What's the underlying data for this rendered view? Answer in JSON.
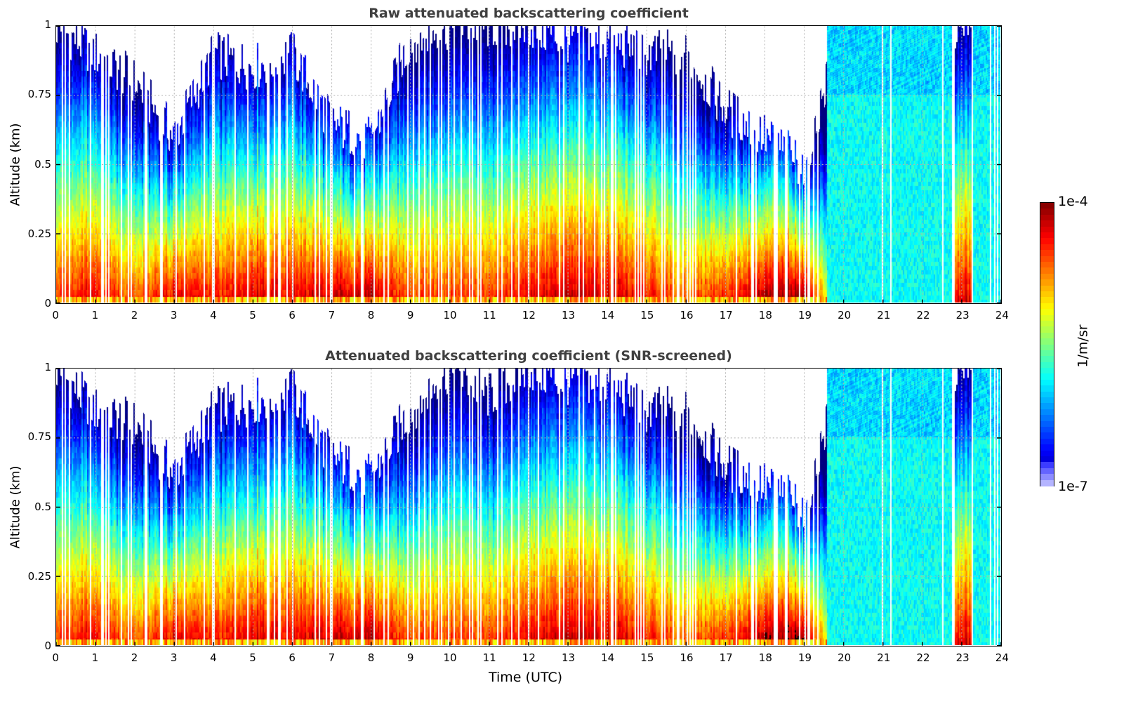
{
  "chart_data": [
    {
      "type": "heatmap",
      "title": "Raw attenuated backscattering coefficient",
      "xlabel": "",
      "ylabel": "Altitude (km)",
      "xlim": [
        0,
        24
      ],
      "ylim": [
        0,
        1
      ],
      "xticks": [
        "0",
        "1",
        "2",
        "3",
        "4",
        "5",
        "6",
        "7",
        "8",
        "9",
        "10",
        "11",
        "12",
        "13",
        "14",
        "15",
        "16",
        "17",
        "18",
        "19",
        "20",
        "21",
        "22",
        "23",
        "24"
      ],
      "yticks": [
        "0",
        "0.25",
        "0.5",
        "0.75",
        "1"
      ],
      "grid": true,
      "screened": false,
      "hourly_profile": {
        "hours": [
          0,
          1,
          2,
          3,
          4,
          5,
          6,
          7,
          8,
          9,
          10,
          11,
          12,
          13,
          14,
          15,
          16,
          17,
          18,
          19,
          20,
          21,
          22,
          23
        ],
        "signal_top_km": [
          1.0,
          0.9,
          0.8,
          0.6,
          0.9,
          0.85,
          0.9,
          0.65,
          0.58,
          0.95,
          1.0,
          1.0,
          1.0,
          0.95,
          0.95,
          0.9,
          0.9,
          0.7,
          0.6,
          0.5,
          1.0,
          1.0,
          1.0,
          1.0
        ],
        "surface_log10": [
          -4.4,
          -4.3,
          -4.6,
          -4.2,
          -4.4,
          -4.2,
          -4.3,
          -4.1,
          -4.1,
          -4.5,
          -4.5,
          -4.5,
          -4.3,
          -4.2,
          -4.2,
          -4.4,
          -4.6,
          -4.4,
          -4.0,
          -4.0,
          -5.8,
          -5.8,
          -5.8,
          -4.3
        ]
      }
    },
    {
      "type": "heatmap",
      "title": "Attenuated backscattering coefficient (SNR-screened)",
      "xlabel": "Time (UTC)",
      "ylabel": "Altitude (km)",
      "xlim": [
        0,
        24
      ],
      "ylim": [
        0,
        1
      ],
      "xticks": [
        "0",
        "1",
        "2",
        "3",
        "4",
        "5",
        "6",
        "7",
        "8",
        "9",
        "10",
        "11",
        "12",
        "13",
        "14",
        "15",
        "16",
        "17",
        "18",
        "19",
        "20",
        "21",
        "22",
        "23",
        "24"
      ],
      "yticks": [
        "0",
        "0.25",
        "0.5",
        "0.75",
        "1"
      ],
      "grid": true,
      "screened": true,
      "hourly_profile": {
        "hours": [
          0,
          1,
          2,
          3,
          4,
          5,
          6,
          7,
          8,
          9,
          10,
          11,
          12,
          13,
          14,
          15,
          16,
          17,
          18,
          19,
          20,
          21,
          22,
          23
        ],
        "signal_top_km": [
          1.0,
          0.85,
          0.8,
          0.62,
          0.85,
          0.88,
          0.92,
          0.68,
          0.6,
          0.85,
          1.0,
          0.9,
          1.0,
          0.95,
          0.95,
          0.85,
          0.85,
          0.65,
          0.58,
          0.5,
          1.0,
          1.0,
          1.0,
          1.0
        ],
        "surface_log10": [
          -4.4,
          -4.3,
          -4.6,
          -4.2,
          -4.4,
          -4.2,
          -4.3,
          -4.1,
          -4.1,
          -4.5,
          -4.5,
          -4.5,
          -4.3,
          -4.2,
          -4.2,
          -4.4,
          -4.6,
          -4.4,
          -4.0,
          -4.0,
          -5.8,
          -5.8,
          -5.8,
          -4.3
        ]
      }
    }
  ],
  "colorbar": {
    "label": "1/m/sr",
    "max_label": "1e-4",
    "min_label": "1e-7",
    "vmin_log10": -7,
    "vmax_log10": -4,
    "colormap": "jet"
  }
}
